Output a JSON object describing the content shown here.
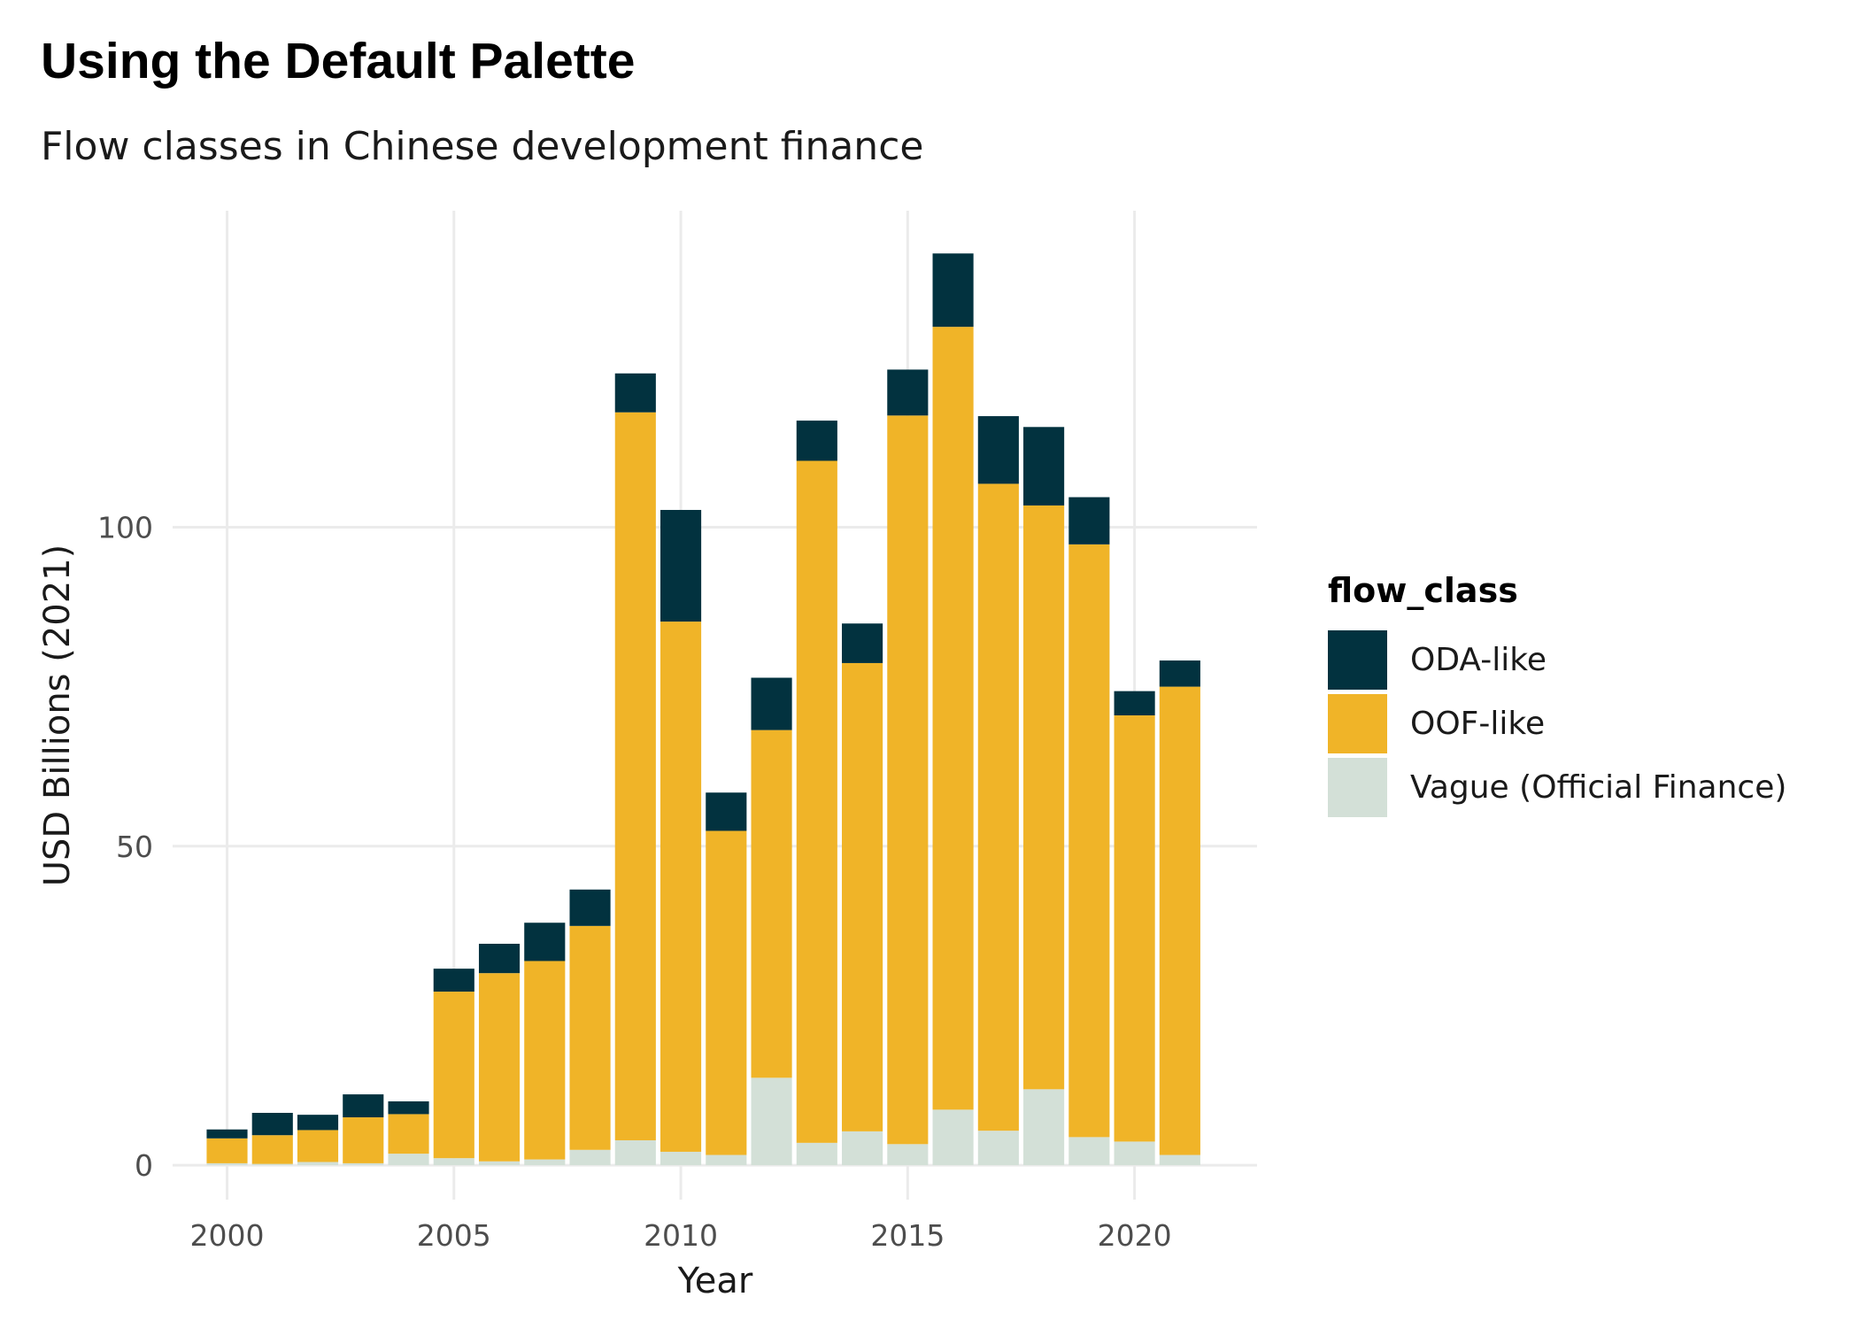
{
  "header": {
    "title": "Using the Default Palette",
    "subtitle": "Flow classes in Chinese development finance"
  },
  "legend": {
    "title": "flow_class",
    "items": [
      {
        "label": "ODA-like",
        "color": "#02323f"
      },
      {
        "label": "OOF-like",
        "color": "#f0b428"
      },
      {
        "label": "Vague (Official Finance)",
        "color": "#d3e0d7"
      }
    ]
  },
  "chart_data": {
    "type": "bar",
    "stacked": true,
    "title": "Using the Default Palette",
    "subtitle": "Flow classes in Chinese development finance",
    "xlabel": "Year",
    "ylabel": "USD Billions (2021)",
    "x": [
      2000,
      2001,
      2002,
      2003,
      2004,
      2005,
      2006,
      2007,
      2008,
      2009,
      2010,
      2011,
      2012,
      2013,
      2014,
      2015,
      2016,
      2017,
      2018,
      2019,
      2020,
      2021
    ],
    "xticks": [
      2000,
      2005,
      2010,
      2015,
      2020
    ],
    "yticks": [
      0,
      50,
      100
    ],
    "xlim": [
      1998.8,
      2022.7
    ],
    "ylim": [
      -5.4,
      149.6
    ],
    "grid": true,
    "legend_position": "right",
    "series": [
      {
        "name": "Vague (Official Finance)",
        "color": "#d3e0d7",
        "values": [
          0.3,
          0.2,
          0.5,
          0.3,
          1.8,
          1.1,
          0.6,
          0.9,
          2.4,
          3.9,
          2.1,
          1.6,
          13.7,
          3.5,
          5.3,
          3.3,
          8.7,
          5.4,
          11.9,
          4.4,
          3.7,
          1.6
        ]
      },
      {
        "name": "OOF-like",
        "color": "#f0b428",
        "values": [
          3.9,
          4.5,
          5.0,
          7.2,
          6.2,
          26.1,
          29.5,
          31.1,
          35.1,
          114.1,
          83.1,
          50.8,
          54.5,
          106.9,
          73.4,
          114.2,
          122.7,
          101.4,
          91.5,
          92.9,
          66.8,
          73.4
        ]
      },
      {
        "name": "ODA-like",
        "color": "#02323f",
        "values": [
          1.4,
          3.5,
          2.4,
          3.6,
          2.0,
          3.6,
          4.6,
          6.0,
          5.7,
          6.1,
          17.5,
          6.0,
          8.2,
          6.3,
          6.2,
          7.2,
          11.5,
          10.6,
          12.3,
          7.4,
          3.8,
          4.1
        ]
      }
    ]
  }
}
